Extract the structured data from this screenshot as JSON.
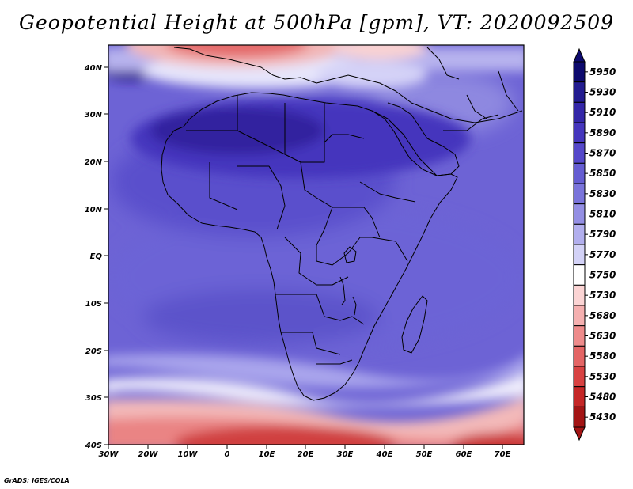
{
  "title": "Geopotential Height at 500hPa [gpm], VT: 2020092509",
  "footer": "GrADS: IGES/COLA",
  "map": {
    "variable": "Geopotential Height",
    "level": "500hPa",
    "units": "gpm",
    "valid_time": "2020092509",
    "lon_range": [
      -30,
      76
    ],
    "lat_range": [
      -40,
      45
    ],
    "x_ticks": [
      "30W",
      "20W",
      "10W",
      "0",
      "10E",
      "20E",
      "30E",
      "40E",
      "50E",
      "60E",
      "70E"
    ],
    "y_ticks": [
      "40N",
      "30N",
      "20N",
      "10N",
      "EQ",
      "10S",
      "20S",
      "30S",
      "40S"
    ]
  },
  "colorbar": {
    "levels": [
      "5950",
      "5930",
      "5910",
      "5890",
      "5870",
      "5850",
      "5830",
      "5810",
      "5790",
      "5770",
      "5750",
      "5730",
      "5680",
      "5630",
      "5580",
      "5530",
      "5480",
      "5430"
    ],
    "colors": [
      "#0d0a6e",
      "#231c90",
      "#3427a8",
      "#4536bd",
      "#5548ca",
      "#655dd2",
      "#7a74db",
      "#948fe4",
      "#b2afee",
      "#d3d2f7",
      "#ffffff",
      "#fbd4d4",
      "#f5b0b0",
      "#ee8b8b",
      "#e46565",
      "#d84242",
      "#c52727",
      "#a31414"
    ]
  }
}
